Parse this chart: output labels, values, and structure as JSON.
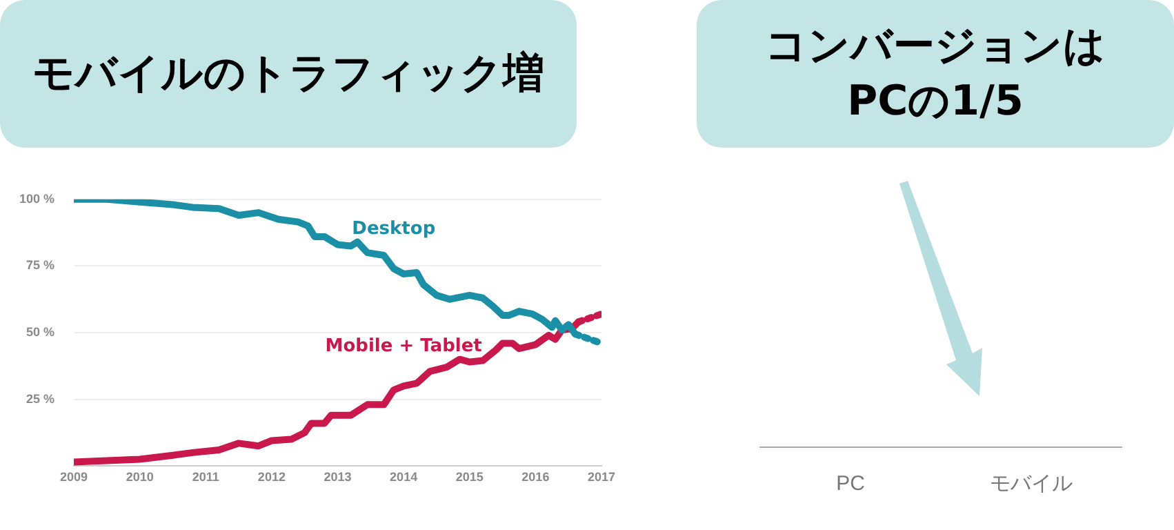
{
  "chart_data": [
    {
      "type": "line",
      "title": "モバイルのトラフィック増",
      "xlim": [
        2009,
        2017
      ],
      "xticks": [
        2009,
        2010,
        2011,
        2012,
        2013,
        2014,
        2015,
        2016,
        2017
      ],
      "ylim": [
        0,
        100
      ],
      "yticks": [
        {
          "value": 25,
          "label": "25 %"
        },
        {
          "value": 50,
          "label": "50 %"
        },
        {
          "value": 75,
          "label": "75 %"
        },
        {
          "value": 100,
          "label": "100 %"
        }
      ],
      "grid": "y",
      "series": [
        {
          "name": "Desktop",
          "color": "#1a8fa5",
          "line_style": "solid",
          "x": [
            2009,
            2009.5,
            2010,
            2010.5,
            2010.8,
            2011.2,
            2011.5,
            2011.8,
            2012.1,
            2012.4,
            2012.55,
            2012.65,
            2012.8,
            2013,
            2013.2,
            2013.3,
            2013.45,
            2013.7,
            2013.85,
            2014,
            2014.2,
            2014.3,
            2014.5,
            2014.7,
            2015,
            2015.2,
            2015.35,
            2015.5,
            2015.6,
            2015.75,
            2015.95,
            2016.1,
            2016.25,
            2016.3,
            2016.4,
            2016.5,
            2016.6
          ],
          "values": [
            100,
            100,
            99,
            98,
            97,
            96.5,
            94,
            95,
            92.5,
            91.5,
            90,
            86,
            86,
            83,
            82.5,
            84,
            80,
            79,
            74,
            72,
            72.5,
            68,
            64,
            62.5,
            64,
            63,
            60,
            56.5,
            56.5,
            58,
            57,
            55,
            52,
            54.5,
            51,
            53,
            49.5
          ]
        },
        {
          "name": "Mobile + Tablet",
          "color": "#c8184c",
          "line_style": "solid",
          "x": [
            2009,
            2010,
            2010.5,
            2010.8,
            2011.2,
            2011.5,
            2011.8,
            2012,
            2012.3,
            2012.5,
            2012.6,
            2012.8,
            2012.9,
            2013.2,
            2013.45,
            2013.7,
            2013.85,
            2014,
            2014.2,
            2014.4,
            2014.65,
            2014.85,
            2015,
            2015.2,
            2015.4,
            2015.5,
            2015.65,
            2015.75,
            2016,
            2016.2,
            2016.3,
            2016.4,
            2016.55,
            2016.65
          ],
          "values": [
            1.5,
            2.5,
            4,
            5,
            6,
            8.5,
            7.5,
            9.5,
            10,
            12.5,
            16,
            16,
            19,
            19,
            23,
            23,
            28.5,
            30,
            31,
            35.5,
            37,
            40,
            39,
            39.5,
            43.5,
            46,
            46,
            44,
            45.5,
            49,
            47.5,
            51,
            51.5,
            54
          ]
        },
        {
          "color": "#1a8fa5",
          "line_style": "dotted",
          "x": [
            2016.6,
            2017
          ],
          "values": [
            49.5,
            46
          ]
        },
        {
          "color": "#c8184c",
          "line_style": "dotted",
          "x": [
            2016.65,
            2017
          ],
          "values": [
            54,
            57
          ]
        }
      ]
    },
    {
      "type": "other",
      "title": "コンバージョンは\nPCの1/5",
      "categories": [
        "PC",
        "モバイル"
      ]
    }
  ]
}
